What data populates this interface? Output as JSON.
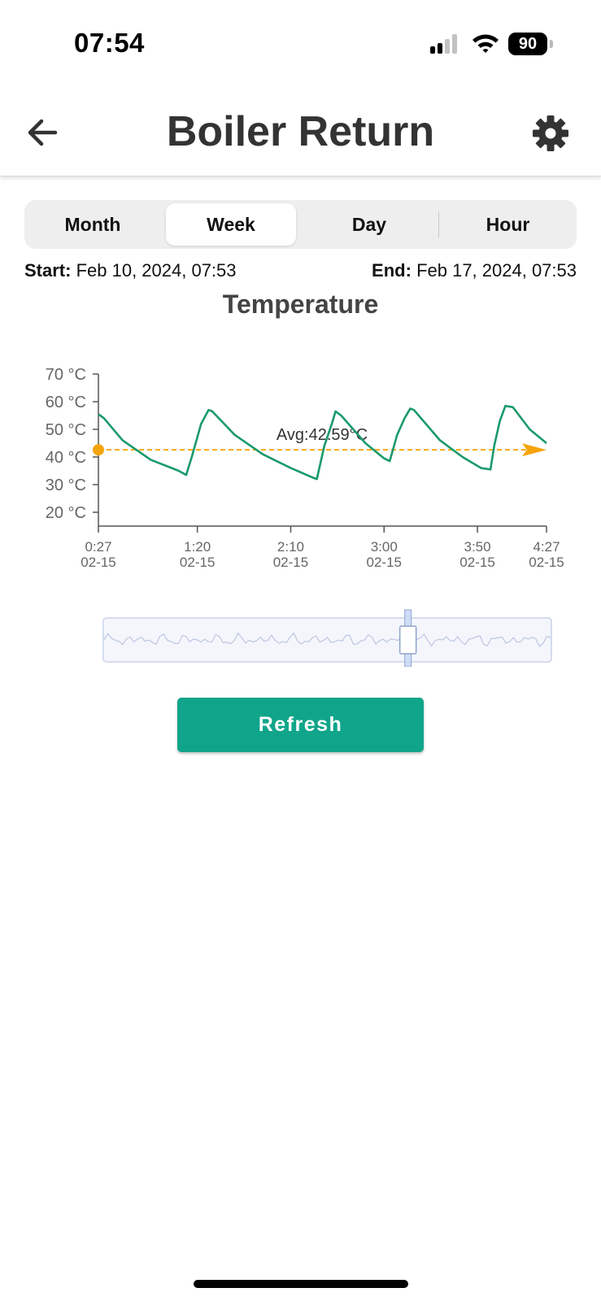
{
  "status_bar": {
    "time": "07:54",
    "battery": "90"
  },
  "header": {
    "title": "Boiler Return",
    "back_icon": "arrow-left-icon",
    "settings_icon": "gear-icon"
  },
  "period_tabs": {
    "selected": "Week",
    "items": [
      {
        "label": "Month"
      },
      {
        "label": "Week"
      },
      {
        "label": "Day"
      },
      {
        "label": "Hour"
      }
    ]
  },
  "range": {
    "start_label": "Start:",
    "start_value": "Feb 10, 2024, 07:53",
    "end_label": "End:",
    "end_value": "Feb 17, 2024, 07:53"
  },
  "chart_data": {
    "type": "line",
    "title": "Temperature",
    "ylim": [
      15,
      70
    ],
    "yticks": [
      20,
      30,
      40,
      50,
      60,
      70
    ],
    "y_unit": "°C",
    "ytick_labels": [
      "20 °C",
      "30 °C",
      "40 °C",
      "50 °C",
      "60 °C",
      "70 °C"
    ],
    "x_range_minutes": [
      27,
      267
    ],
    "xticks": [
      {
        "minutes": 27,
        "time": "0:27",
        "date": "02-15"
      },
      {
        "minutes": 80,
        "time": "1:20",
        "date": "02-15"
      },
      {
        "minutes": 130,
        "time": "2:10",
        "date": "02-15"
      },
      {
        "minutes": 180,
        "time": "3:00",
        "date": "02-15"
      },
      {
        "minutes": 230,
        "time": "3:50",
        "date": "02-15"
      },
      {
        "minutes": 267,
        "time": "4:27",
        "date": "02-15"
      }
    ],
    "series": [
      {
        "color": "#1a9a6a",
        "points": [
          [
            27,
            55.5
          ],
          [
            30,
            54
          ],
          [
            40,
            46
          ],
          [
            55,
            39
          ],
          [
            70,
            35
          ],
          [
            74,
            33.5
          ],
          [
            77,
            40
          ],
          [
            82,
            52
          ],
          [
            86,
            57
          ],
          [
            88,
            56.5
          ],
          [
            100,
            48
          ],
          [
            115,
            41
          ],
          [
            130,
            36
          ],
          [
            142,
            32.5
          ],
          [
            144,
            32
          ],
          [
            148,
            44
          ],
          [
            152,
            52
          ],
          [
            154,
            56.5
          ],
          [
            157,
            55
          ],
          [
            170,
            45
          ],
          [
            180,
            39.5
          ],
          [
            183,
            38.5
          ],
          [
            187,
            48
          ],
          [
            191,
            54
          ],
          [
            194,
            57.5
          ],
          [
            196,
            57
          ],
          [
            210,
            46
          ],
          [
            222,
            40
          ],
          [
            232,
            36
          ],
          [
            237,
            35.5
          ],
          [
            239,
            44
          ],
          [
            242,
            53
          ],
          [
            245,
            58.5
          ],
          [
            249,
            58
          ],
          [
            258,
            50
          ],
          [
            267,
            45
          ]
        ]
      }
    ],
    "average": {
      "value": 42.59,
      "label": "Avg:42.59°C",
      "color": "#f5a30a"
    },
    "zoom_slider": {
      "handle_position": 0.68
    }
  },
  "actions": {
    "refresh_label": "Refresh"
  },
  "colors": {
    "accent": "#10a58a",
    "line": "#1a9a6a",
    "average": "#f5a30a"
  }
}
